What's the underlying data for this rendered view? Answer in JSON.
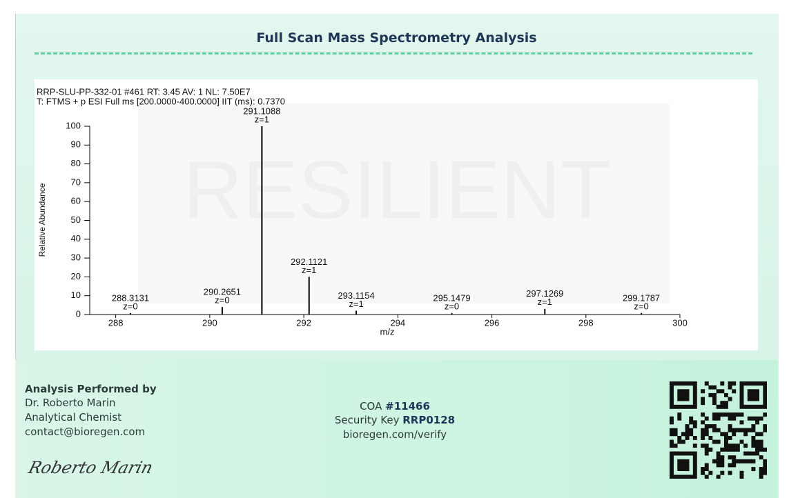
{
  "title": "Full Scan Mass Spectrometry Analysis",
  "chart_data": {
    "type": "stem",
    "header_lines": [
      "RRP-SLU-PP-332-01 #461 RT: 3.45 AV: 1 NL: 7.50E7",
      "T: FTMS + p ESI Full ms [200.0000-400.0000] IIT (ms): 0.7370"
    ],
    "watermark": "RESILIENT",
    "x_label": "m/z",
    "y_label": "Relative Abundance",
    "x": [
      288.3131,
      290.2651,
      291.1088,
      292.1121,
      293.1154,
      295.1479,
      297.1269,
      299.1787
    ],
    "values": [
      0.8,
      4,
      100,
      20,
      2,
      0.8,
      3,
      0.8
    ],
    "charge_labels": [
      "z=0",
      "z=0",
      "z=1",
      "z=1",
      "z=1",
      "z=0",
      "z=1",
      "z=0"
    ],
    "color": "#000000",
    "xlim": [
      287.33,
      300
    ],
    "xticks": [
      288,
      290,
      292,
      294,
      296,
      298,
      300
    ],
    "ylim": [
      0,
      100
    ],
    "yticks": [
      0,
      10,
      20,
      30,
      40,
      50,
      60,
      70,
      80,
      90,
      100
    ]
  },
  "analyst": {
    "heading": "Analysis Performed by",
    "name": "Dr. Roberto Marin",
    "role": "Analytical Chemist",
    "email": "contact@bioregen.com",
    "signature": "Roberto Marin"
  },
  "verification": {
    "coa_label": "COA",
    "coa_number": "#11466",
    "key_label": "Security Key",
    "key": "RRP0128",
    "url": "bioregen.com/verify"
  }
}
